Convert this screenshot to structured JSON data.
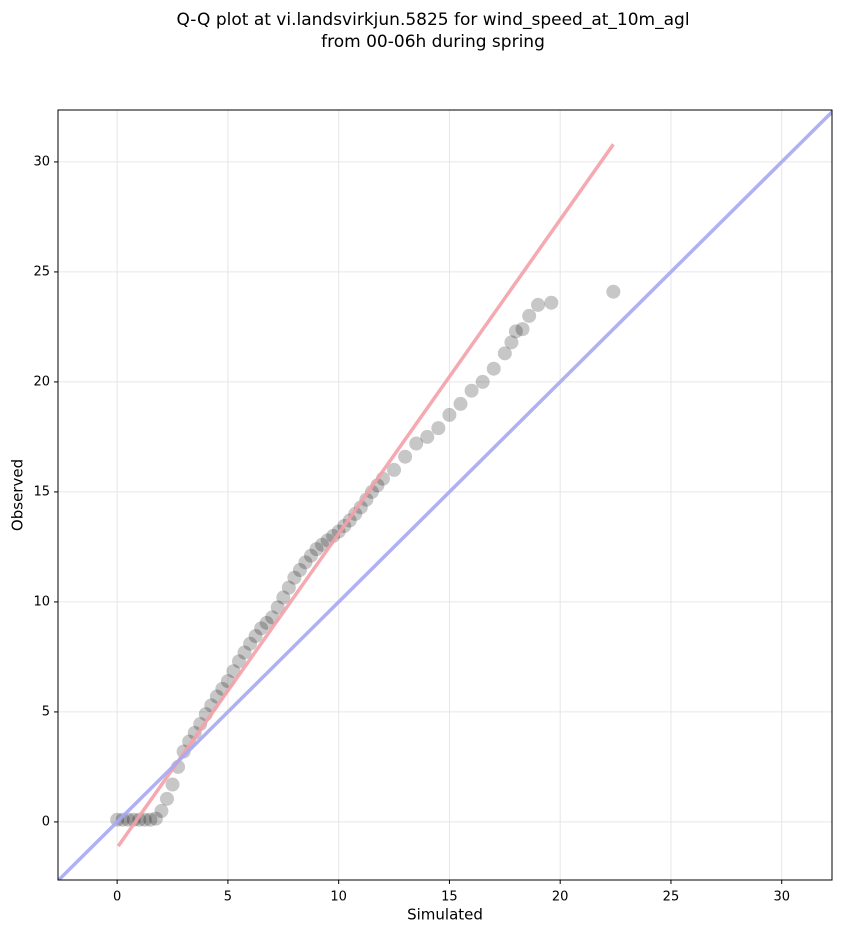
{
  "chart_data": {
    "type": "scatter",
    "title": [
      "Q-Q plot at vi.landsvirkjun.5825 for wind_speed_at_10m_agl",
      "from 00-06h during spring"
    ],
    "x_label": "Simulated",
    "y_label": "Observed",
    "xlim": [
      -2.67,
      32.27
    ],
    "ylim": [
      -2.64,
      32.36
    ],
    "xticks": [
      0,
      5,
      10,
      15,
      20,
      25,
      30
    ],
    "yticks": [
      0,
      5,
      10,
      15,
      20,
      25,
      30
    ],
    "grid": true,
    "lines": [
      {
        "color": "#f4a0a8",
        "x": [
          0.05,
          22.4
        ],
        "y": [
          -1.1,
          30.8
        ]
      },
      {
        "color": "#a6a8f2",
        "x": [
          -2.67,
          32.4
        ],
        "y": [
          -2.67,
          32.4
        ]
      }
    ],
    "points": {
      "color": "#000000",
      "x": [
        0,
        0.25,
        0.5,
        0.75,
        1,
        1.25,
        1.5,
        1.75,
        2,
        2.25,
        2.5,
        2.75,
        3,
        3.25,
        3.5,
        3.75,
        4,
        4.25,
        4.5,
        4.75,
        5,
        5.25,
        5.5,
        5.75,
        6,
        6.25,
        6.5,
        6.75,
        7,
        7.25,
        7.5,
        7.75,
        8,
        8.25,
        8.5,
        8.75,
        9,
        9.25,
        9.5,
        9.75,
        10,
        10.25,
        10.5,
        10.75,
        11,
        11.25,
        11.5,
        11.75,
        12,
        12.5,
        13,
        13.5,
        14,
        14.5,
        15,
        15.5,
        16,
        16.5,
        17,
        17.5,
        17.8,
        18,
        18.3,
        18.6,
        19,
        19.6,
        22.4
      ],
      "y": [
        0.1,
        0.1,
        0.1,
        0.1,
        0.1,
        0.1,
        0.1,
        0.15,
        0.5,
        1.05,
        1.7,
        2.5,
        3.2,
        3.65,
        4.05,
        4.45,
        4.9,
        5.3,
        5.7,
        6.05,
        6.4,
        6.85,
        7.3,
        7.7,
        8.1,
        8.45,
        8.8,
        9.05,
        9.3,
        9.75,
        10.2,
        10.65,
        11.1,
        11.45,
        11.8,
        12.1,
        12.4,
        12.6,
        12.8,
        13,
        13.2,
        13.45,
        13.7,
        14,
        14.3,
        14.65,
        15,
        15.3,
        15.6,
        16,
        16.6,
        17.2,
        17.5,
        17.9,
        18.5,
        19,
        19.6,
        20,
        20.6,
        21.3,
        21.8,
        22.3,
        22.4,
        23,
        23.5,
        23.6,
        24.1
      ]
    }
  }
}
